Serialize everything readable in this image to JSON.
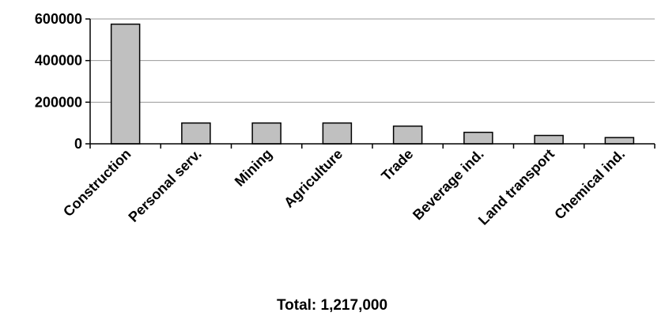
{
  "chart_data": {
    "type": "bar",
    "categories": [
      "Construction",
      "Personal serv.",
      "Mining",
      "Agriculture",
      "Trade",
      "Beverage ind.",
      "Land transport",
      "Chemical ind."
    ],
    "values": [
      575000,
      100000,
      100000,
      100000,
      85000,
      55000,
      40000,
      30000
    ],
    "y_ticks": [
      0,
      200000,
      400000,
      600000
    ],
    "ylim": [
      0,
      600000
    ],
    "grid": true,
    "legend": "none",
    "footer": "Total: 1,217,000",
    "colors": {
      "bar": "#c0c0c0",
      "bar_border": "#000000",
      "grid": "#9a9a9a"
    }
  }
}
